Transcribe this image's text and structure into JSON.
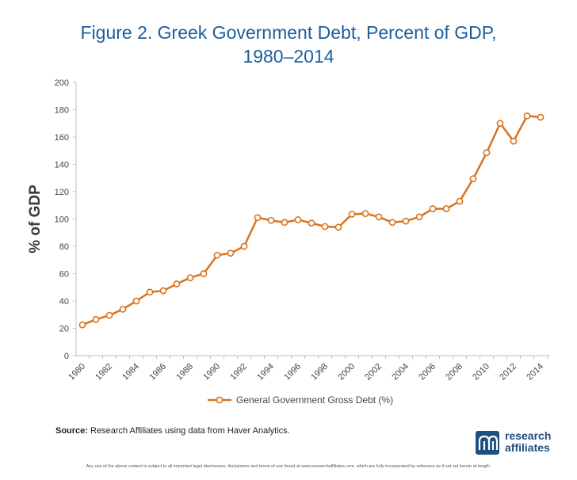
{
  "title_line1": "Figure 2. Greek Government Debt, Percent of GDP,",
  "title_line2": "1980–2014",
  "source_label": "Source:",
  "source_text": " Research Affiliates using data from Haver Analytics.",
  "logo": {
    "line1": "research",
    "line2": "affiliates",
    "icon": "ra-monogram-icon"
  },
  "disclaimer": "Any use of the above content is subject to all important legal disclosures, disclaimers and terms of use found at www.researchaffiliates.com, which are fully incorporated by reference as if set out herein at length.",
  "colors": {
    "series": "#d9731c",
    "title": "#1b5e9e",
    "axis": "#bfbfbf",
    "logo": "#1d4f80"
  },
  "chart_data": {
    "type": "line",
    "ylabel": "% of GDP",
    "xlabel": "",
    "ylim": [
      0,
      200
    ],
    "yticks": [
      0,
      20,
      40,
      60,
      80,
      100,
      120,
      140,
      160,
      180,
      200
    ],
    "xticks": [
      "1980",
      "1982",
      "1984",
      "1986",
      "1988",
      "1990",
      "1992",
      "1994",
      "1996",
      "1998",
      "2000",
      "2002",
      "2004",
      "2006",
      "2008",
      "2010",
      "2012",
      "2014"
    ],
    "x": [
      1980,
      1981,
      1982,
      1983,
      1984,
      1985,
      1986,
      1987,
      1988,
      1989,
      1990,
      1991,
      1992,
      1993,
      1994,
      1995,
      1996,
      1997,
      1998,
      1999,
      2000,
      2001,
      2002,
      2003,
      2004,
      2005,
      2006,
      2007,
      2008,
      2009,
      2010,
      2011,
      2012,
      2013,
      2014
    ],
    "series": [
      {
        "name": "General Government Gross Debt (%)",
        "values": [
          22.5,
          26.5,
          29.5,
          34,
          40,
          46.5,
          47.5,
          52.5,
          57,
          60,
          73.5,
          75,
          80,
          101,
          99,
          97.5,
          99.5,
          97,
          94.5,
          94,
          103.5,
          104,
          101.5,
          97.5,
          98.5,
          101.5,
          107.5,
          107.5,
          113,
          129.5,
          148.5,
          170,
          157,
          175.5,
          174.5
        ]
      }
    ],
    "legend_position": "bottom",
    "grid": false
  }
}
